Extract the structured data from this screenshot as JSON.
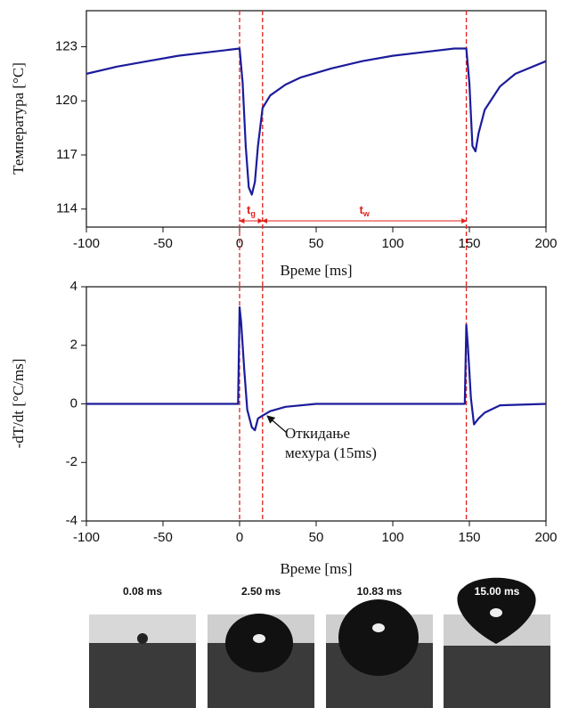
{
  "chart_data": [
    {
      "type": "line",
      "y_label": "Температура [°C]",
      "x_label": "Време [ms]",
      "xlim": [
        -100,
        200
      ],
      "xticks": [
        -100,
        -50,
        0,
        50,
        100,
        150,
        200
      ],
      "ylim": [
        113,
        125
      ],
      "yticks": [
        114,
        117,
        120,
        123
      ],
      "vlines": [
        0,
        15,
        148
      ],
      "vline_color": "#e0201c",
      "spans": [
        {
          "from": 0,
          "to": 15,
          "symbol": "t",
          "subscript": "g"
        },
        {
          "from": 15,
          "to": 148,
          "symbol": "t",
          "subscript": "w"
        }
      ],
      "series": [
        {
          "color": "#1c1c9c",
          "x": [
            -100,
            -80,
            -60,
            -40,
            -20,
            0,
            2,
            4,
            6,
            8,
            10,
            12,
            15,
            20,
            30,
            40,
            60,
            80,
            100,
            120,
            140,
            148,
            150,
            152,
            154,
            156,
            160,
            170,
            180,
            200
          ],
          "values": [
            121.5,
            121.9,
            122.2,
            122.5,
            122.7,
            122.9,
            121,
            117.5,
            115.2,
            114.8,
            115.5,
            117.5,
            119.6,
            120.3,
            120.9,
            121.3,
            121.8,
            122.2,
            122.5,
            122.7,
            122.9,
            122.9,
            121,
            117.5,
            117.2,
            118.2,
            119.5,
            120.8,
            121.5,
            122.2
          ]
        }
      ]
    },
    {
      "type": "line",
      "y_label": "-dT/dt [°C/ms]",
      "x_label": "Време [ms]",
      "xlim": [
        -100,
        200
      ],
      "xticks": [
        -100,
        -50,
        0,
        50,
        100,
        150,
        200
      ],
      "ylim": [
        -4,
        4
      ],
      "yticks": [
        -4,
        -2,
        0,
        2,
        4
      ],
      "vlines": [
        0,
        15,
        148
      ],
      "vline_color": "#e0201c",
      "annotation": [
        "Откидање",
        "мехура (15ms)"
      ],
      "series": [
        {
          "color": "#1c1c9c",
          "x": [
            -100,
            -50,
            -1,
            0,
            1,
            3,
            5,
            8,
            10,
            12,
            15,
            20,
            30,
            50,
            100,
            146,
            147,
            148,
            149,
            151,
            153,
            156,
            160,
            170,
            200
          ],
          "values": [
            0,
            0,
            0,
            3.3,
            2.8,
            1.2,
            -0.2,
            -0.8,
            -0.9,
            -0.5,
            -0.4,
            -0.25,
            -0.1,
            0,
            0,
            0,
            0,
            2.7,
            2,
            0.2,
            -0.7,
            -0.5,
            -0.3,
            -0.05,
            0
          ]
        }
      ]
    }
  ],
  "frames": [
    "0.08 ms",
    "2.50 ms",
    "10.83 ms",
    "15.00 ms"
  ]
}
